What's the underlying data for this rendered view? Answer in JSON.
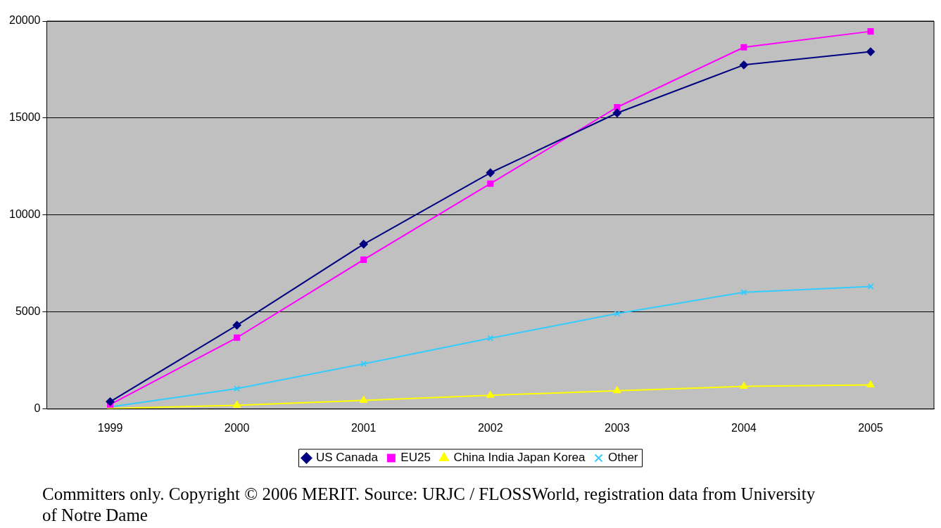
{
  "chart_data": {
    "type": "line",
    "categories": [
      "1999",
      "2000",
      "2001",
      "2002",
      "2003",
      "2004",
      "2005"
    ],
    "series": [
      {
        "name": "US Canada",
        "color": "#000080",
        "marker": "diamond",
        "values": [
          380,
          4320,
          8500,
          12180,
          15260,
          17740,
          18420
        ]
      },
      {
        "name": "EU25",
        "color": "#ff00ff",
        "marker": "square",
        "values": [
          230,
          3680,
          7700,
          11620,
          15560,
          18650,
          19470
        ]
      },
      {
        "name": "China India Japan Korea",
        "color": "#ffff00",
        "marker": "triangle",
        "values": [
          30,
          190,
          450,
          710,
          940,
          1170,
          1240
        ]
      },
      {
        "name": "Other",
        "color": "#33ccff",
        "marker": "cross",
        "values": [
          110,
          1050,
          2330,
          3650,
          4920,
          6020,
          6320
        ]
      }
    ],
    "ylim": [
      0,
      20000
    ],
    "yticks": [
      0,
      5000,
      10000,
      15000,
      20000
    ],
    "grid": "y",
    "legend": "bottom",
    "line_style": "solid",
    "annotations": [
      "Committers only. Copyright © 2006 MERIT. Source: URJC / FLOSSWorld, registration data from University of Notre Dame"
    ]
  }
}
